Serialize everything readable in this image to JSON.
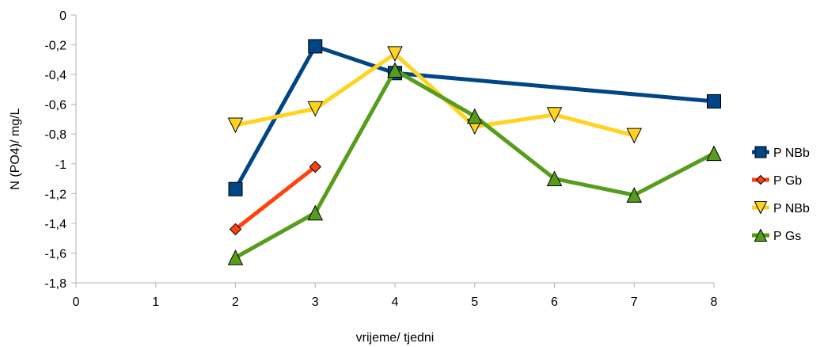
{
  "chart_data": {
    "type": "line",
    "title": "",
    "xlabel": "vrijeme/ tjedni",
    "ylabel": "N (PO4)/ mg/L",
    "xlim": [
      0,
      8
    ],
    "ylim": [
      -1.8,
      0
    ],
    "x_ticks": [
      "0",
      "1",
      "2",
      "3",
      "4",
      "5",
      "6",
      "7",
      "8"
    ],
    "y_ticks": [
      "0",
      "-0,2",
      "-0,4",
      "-0,6",
      "-0,8",
      "-1",
      "-1,2",
      "-1,4",
      "-1,6",
      "-1,8"
    ],
    "grid": false,
    "legend_position": "right",
    "series": [
      {
        "name": "P NBb",
        "color": "#004586",
        "marker": "square",
        "x": [
          2,
          3,
          4,
          8
        ],
        "y": [
          -1.17,
          -0.21,
          -0.39,
          -0.58
        ]
      },
      {
        "name": "P Gb",
        "color": "#ff420e",
        "marker": "diamond",
        "x": [
          2,
          3
        ],
        "y": [
          -1.44,
          -1.02
        ]
      },
      {
        "name": "P NBb",
        "color": "#ffd320",
        "marker": "triangle-down",
        "x": [
          2,
          3,
          4,
          5,
          6,
          7
        ],
        "y": [
          -0.74,
          -0.63,
          -0.26,
          -0.75,
          -0.67,
          -0.81
        ]
      },
      {
        "name": "P Gs",
        "color": "#579d1c",
        "marker": "triangle-up",
        "x": [
          2,
          3,
          4,
          5,
          6,
          7,
          8
        ],
        "y": [
          -1.63,
          -1.33,
          -0.37,
          -0.68,
          -1.1,
          -1.21,
          -0.93
        ]
      }
    ]
  }
}
